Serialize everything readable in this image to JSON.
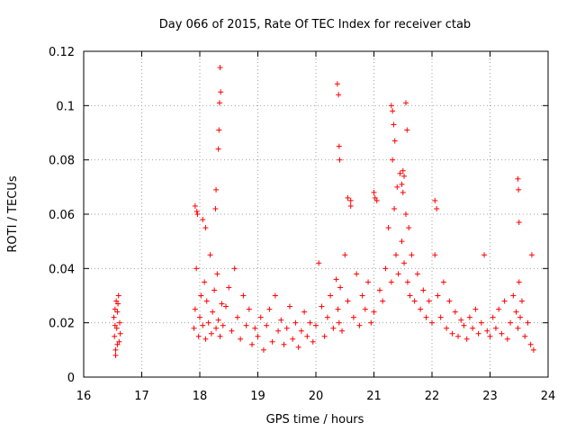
{
  "chart_data": {
    "type": "scatter",
    "title": "Day 066 of 2015, Rate Of TEC Index for receiver ctab",
    "xlabel": "GPS time / hours",
    "ylabel": "ROTI / TECUs",
    "xlim": [
      16,
      24
    ],
    "ylim": [
      0,
      0.12
    ],
    "xticks": [
      "16",
      "17",
      "18",
      "19",
      "20",
      "21",
      "22",
      "23",
      "24"
    ],
    "yticks": [
      "0",
      "0.02",
      "0.04",
      "0.06",
      "0.08",
      "0.1",
      "0.12"
    ],
    "grid": true,
    "marker": "+",
    "colors": {
      "series": "#ff0000",
      "axes": "#000000",
      "grid": "#a0a0a0"
    },
    "series": [
      {
        "name": "ROTI",
        "x": [
          16.52,
          16.53,
          16.54,
          16.55,
          16.56,
          16.57,
          16.58,
          16.6,
          16.62,
          16.63,
          16.55,
          16.58,
          16.61,
          16.54,
          16.59,
          17.9,
          17.92,
          17.94,
          17.96,
          17.98,
          18.0,
          18.02,
          18.05,
          18.08,
          18.1,
          18.12,
          18.15,
          18.18,
          18.2,
          18.22,
          18.25,
          18.28,
          18.3,
          18.32,
          18.35,
          18.38,
          18.4,
          18.45,
          18.5,
          18.55,
          18.6,
          18.65,
          18.7,
          18.75,
          18.8,
          18.85,
          18.9,
          18.95,
          19.0,
          19.05,
          19.1,
          19.15,
          19.2,
          19.25,
          19.3,
          19.35,
          19.4,
          19.45,
          19.5,
          19.55,
          19.6,
          19.65,
          19.7,
          19.75,
          19.8,
          19.85,
          19.9,
          19.95,
          20.0,
          20.05,
          20.1,
          20.15,
          20.2,
          20.25,
          20.3,
          20.35,
          20.38,
          20.4,
          20.42,
          20.45,
          20.5,
          20.55,
          20.6,
          20.65,
          20.7,
          20.75,
          20.8,
          20.85,
          20.9,
          20.95,
          21.0,
          21.05,
          21.1,
          21.15,
          21.2,
          21.25,
          21.3,
          21.32,
          21.35,
          21.38,
          21.4,
          21.42,
          21.45,
          21.48,
          21.5,
          21.52,
          21.55,
          21.58,
          21.6,
          21.62,
          21.65,
          21.7,
          21.75,
          21.8,
          21.85,
          21.9,
          21.95,
          22.0,
          22.05,
          22.1,
          22.15,
          22.2,
          22.25,
          22.3,
          22.35,
          22.4,
          22.45,
          22.5,
          22.55,
          22.6,
          22.65,
          22.7,
          22.75,
          22.8,
          22.85,
          22.9,
          22.95,
          23.0,
          23.05,
          23.1,
          23.15,
          23.2,
          23.25,
          23.3,
          23.35,
          23.4,
          23.45,
          23.48,
          23.5,
          23.52,
          23.55,
          23.6,
          23.65,
          23.7,
          23.72,
          23.75,
          18.35,
          18.36,
          18.34,
          18.33,
          18.32,
          18.28,
          18.27,
          20.37,
          20.39,
          20.4,
          20.41,
          21.3,
          21.32,
          21.34,
          21.55,
          21.57,
          21.36,
          21.5,
          21.52,
          21.48,
          23.48,
          23.49,
          23.5,
          20.55,
          20.6,
          21.0,
          21.02,
          22.05,
          22.08,
          17.92,
          17.95,
          18.05,
          18.1
        ],
        "y": [
          0.022,
          0.015,
          0.025,
          0.01,
          0.028,
          0.018,
          0.012,
          0.03,
          0.02,
          0.016,
          0.008,
          0.024,
          0.013,
          0.019,
          0.027,
          0.018,
          0.025,
          0.04,
          0.06,
          0.015,
          0.022,
          0.03,
          0.019,
          0.035,
          0.014,
          0.028,
          0.02,
          0.045,
          0.016,
          0.024,
          0.032,
          0.018,
          0.038,
          0.021,
          0.015,
          0.027,
          0.019,
          0.026,
          0.033,
          0.017,
          0.04,
          0.022,
          0.014,
          0.03,
          0.019,
          0.025,
          0.012,
          0.018,
          0.015,
          0.022,
          0.01,
          0.019,
          0.025,
          0.013,
          0.03,
          0.017,
          0.021,
          0.012,
          0.018,
          0.026,
          0.014,
          0.02,
          0.011,
          0.017,
          0.024,
          0.015,
          0.02,
          0.013,
          0.019,
          0.042,
          0.026,
          0.015,
          0.022,
          0.03,
          0.018,
          0.036,
          0.025,
          0.02,
          0.033,
          0.017,
          0.045,
          0.028,
          0.065,
          0.022,
          0.038,
          0.019,
          0.03,
          0.025,
          0.035,
          0.02,
          0.024,
          0.065,
          0.032,
          0.028,
          0.04,
          0.055,
          0.035,
          0.08,
          0.062,
          0.045,
          0.07,
          0.038,
          0.075,
          0.05,
          0.068,
          0.042,
          0.06,
          0.035,
          0.055,
          0.03,
          0.045,
          0.028,
          0.038,
          0.025,
          0.032,
          0.022,
          0.028,
          0.02,
          0.045,
          0.03,
          0.022,
          0.035,
          0.018,
          0.028,
          0.016,
          0.024,
          0.015,
          0.021,
          0.019,
          0.014,
          0.022,
          0.018,
          0.025,
          0.016,
          0.02,
          0.045,
          0.017,
          0.015,
          0.022,
          0.018,
          0.025,
          0.016,
          0.028,
          0.014,
          0.02,
          0.03,
          0.024,
          0.018,
          0.035,
          0.022,
          0.028,
          0.015,
          0.02,
          0.012,
          0.045,
          0.01,
          0.114,
          0.105,
          0.101,
          0.091,
          0.084,
          0.069,
          0.062,
          0.108,
          0.104,
          0.085,
          0.08,
          0.1,
          0.098,
          0.093,
          0.101,
          0.091,
          0.087,
          0.076,
          0.074,
          0.071,
          0.073,
          0.069,
          0.057,
          0.066,
          0.063,
          0.068,
          0.066,
          0.065,
          0.062,
          0.063,
          0.061,
          0.058,
          0.055
        ]
      }
    ]
  }
}
